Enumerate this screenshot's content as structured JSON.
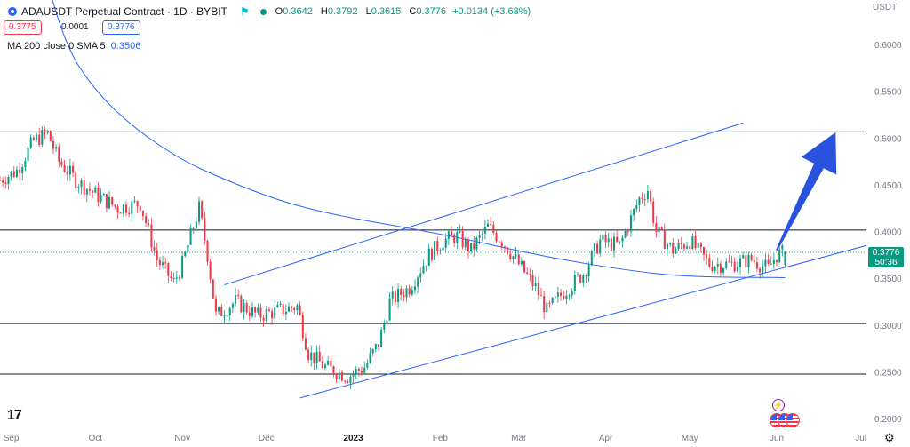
{
  "header": {
    "title": "ADAUSDT Perpetual Contract · 1D · BYBIT",
    "open_label": "O",
    "open": "0.3642",
    "high_label": "H",
    "high": "0.3792",
    "low_label": "L",
    "low": "0.3615",
    "close_label": "C",
    "close": "0.3776",
    "change": "+0.0134 (+3.68%)"
  },
  "trade": {
    "sell": "0.3775",
    "spread": "0.0001",
    "buy": "0.3776"
  },
  "indicator": {
    "label": "MA 200 close 0 SMA 5",
    "value": "0.3506"
  },
  "currency": "USDT",
  "last_price": {
    "price": "0.3776",
    "countdown": "50:36"
  },
  "colors": {
    "up": "#089981",
    "down": "#f23645",
    "ma": "#2962ff",
    "level": "#131722",
    "channel": "#2962ff",
    "arrow": "#2a52e0"
  },
  "icons": [
    "tradingview-logo-icon",
    "settings-gear-icon",
    "lightning-event-icon",
    "us-flag-event-icon",
    "market-open-dot-icon",
    "target-icon"
  ],
  "chart_data": {
    "type": "candlestick",
    "symbol": "ADAUSDT",
    "timeframe": "1D",
    "x_ticks": [
      "Sep",
      "Oct",
      "Nov",
      "Dec",
      "2023",
      "Feb",
      "Mar",
      "Apr",
      "May",
      "Jun",
      "Jul"
    ],
    "y_ticks": [
      "0.6000",
      "0.5500",
      "0.5000",
      "0.4500",
      "0.4000",
      "0.3500",
      "0.3000",
      "0.2500",
      "0.2000"
    ],
    "ylim": [
      0.195,
      0.625
    ],
    "x_range": [
      "2022-08-28",
      "2023-07-03"
    ],
    "horizontal_levels": [
      0.5065,
      0.4015,
      0.3015,
      0.2475
    ],
    "channel": {
      "upper": [
        [
          "2022-11-16",
          0.343
        ],
        [
          "2023-05-20",
          0.516
        ]
      ],
      "lower": [
        [
          "2022-12-13",
          0.222
        ],
        [
          "2023-07-03",
          0.385
        ]
      ]
    },
    "arrow": {
      "from": [
        "2023-06-01",
        0.38
      ],
      "to": [
        "2023-06-22",
        0.506
      ]
    },
    "ma_200": [
      [
        "2022-09-10",
        0.71
      ],
      [
        "2022-09-20",
        0.6
      ],
      [
        "2022-10-01",
        0.55
      ],
      [
        "2022-10-15",
        0.51
      ],
      [
        "2022-11-01",
        0.476
      ],
      [
        "2022-11-15",
        0.457
      ],
      [
        "2022-12-01",
        0.438
      ],
      [
        "2022-12-15",
        0.425
      ],
      [
        "2023-01-01",
        0.414
      ],
      [
        "2023-01-20",
        0.404
      ],
      [
        "2023-02-10",
        0.392
      ],
      [
        "2023-03-01",
        0.379
      ],
      [
        "2023-03-20",
        0.368
      ],
      [
        "2023-04-10",
        0.358
      ],
      [
        "2023-04-25",
        0.353
      ],
      [
        "2023-05-10",
        0.351
      ],
      [
        "2023-05-25",
        0.351
      ],
      [
        "2023-06-04",
        0.3506
      ]
    ],
    "ohlc_anchors": [
      [
        "2022-08-28",
        0.455
      ],
      [
        "2022-09-03",
        0.465
      ],
      [
        "2022-09-09",
        0.497
      ],
      [
        "2022-09-14",
        0.505
      ],
      [
        "2022-09-18",
        0.475
      ],
      [
        "2022-09-24",
        0.455
      ],
      [
        "2022-10-01",
        0.44
      ],
      [
        "2022-10-09",
        0.425
      ],
      [
        "2022-10-17",
        0.43
      ],
      [
        "2022-10-23",
        0.37
      ],
      [
        "2022-10-29",
        0.345
      ],
      [
        "2022-11-01",
        0.365
      ],
      [
        "2022-11-04",
        0.395
      ],
      [
        "2022-11-07",
        0.425
      ],
      [
        "2022-11-10",
        0.375
      ],
      [
        "2022-11-13",
        0.31
      ],
      [
        "2022-11-20",
        0.325
      ],
      [
        "2022-11-28",
        0.31
      ],
      [
        "2022-12-05",
        0.315
      ],
      [
        "2022-12-12",
        0.32
      ],
      [
        "2022-12-16",
        0.27
      ],
      [
        "2022-12-22",
        0.255
      ],
      [
        "2022-12-30",
        0.245
      ],
      [
        "2023-01-05",
        0.255
      ],
      [
        "2023-01-10",
        0.28
      ],
      [
        "2023-01-14",
        0.325
      ],
      [
        "2023-01-21",
        0.34
      ],
      [
        "2023-01-28",
        0.375
      ],
      [
        "2023-02-02",
        0.39
      ],
      [
        "2023-02-07",
        0.395
      ],
      [
        "2023-02-12",
        0.38
      ],
      [
        "2023-02-18",
        0.405
      ],
      [
        "2023-02-23",
        0.39
      ],
      [
        "2023-03-01",
        0.365
      ],
      [
        "2023-03-07",
        0.34
      ],
      [
        "2023-03-11",
        0.315
      ],
      [
        "2023-03-17",
        0.335
      ],
      [
        "2023-03-24",
        0.355
      ],
      [
        "2023-03-30",
        0.39
      ],
      [
        "2023-04-06",
        0.385
      ],
      [
        "2023-04-13",
        0.435
      ],
      [
        "2023-04-16",
        0.445
      ],
      [
        "2023-04-19",
        0.4
      ],
      [
        "2023-04-25",
        0.38
      ],
      [
        "2023-05-01",
        0.39
      ],
      [
        "2023-05-08",
        0.365
      ],
      [
        "2023-05-16",
        0.365
      ],
      [
        "2023-05-23",
        0.37
      ],
      [
        "2023-05-29",
        0.36
      ],
      [
        "2023-06-01",
        0.375
      ],
      [
        "2023-06-04",
        0.3776
      ]
    ]
  }
}
